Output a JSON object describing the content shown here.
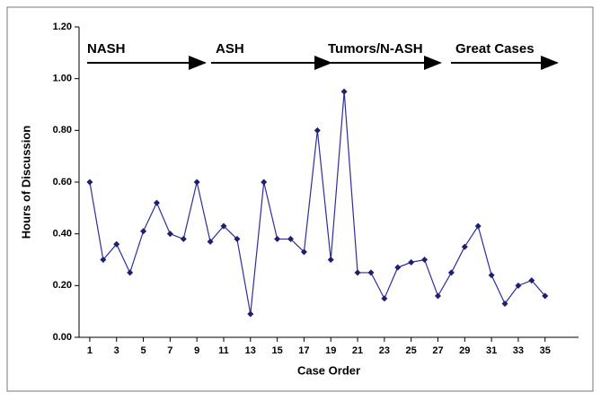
{
  "chart_data": {
    "type": "line",
    "x_label": "Case Order",
    "y_label": "Hours of Discussion",
    "x": [
      1,
      2,
      3,
      4,
      5,
      6,
      7,
      8,
      9,
      10,
      11,
      12,
      13,
      14,
      15,
      16,
      17,
      18,
      19,
      20,
      21,
      22,
      23,
      24,
      25,
      26,
      27,
      28,
      29,
      30,
      31,
      32,
      33,
      34,
      35
    ],
    "series": [
      {
        "name": "Hours",
        "color": "#2e2e9a",
        "marker_color": "#1f1f6e",
        "values": [
          0.6,
          0.3,
          0.36,
          0.25,
          0.41,
          0.52,
          0.4,
          0.38,
          0.6,
          0.37,
          0.43,
          0.38,
          0.09,
          0.6,
          0.38,
          0.38,
          0.33,
          0.8,
          0.3,
          0.95,
          0.25,
          0.25,
          0.15,
          0.27,
          0.29,
          0.3,
          0.16,
          0.25,
          0.35,
          0.43,
          0.24,
          0.13,
          0.2,
          0.22,
          0.16
        ]
      }
    ],
    "xlim": [
      0.2,
      37.5
    ],
    "xticks": [
      1,
      3,
      5,
      7,
      9,
      11,
      13,
      15,
      17,
      19,
      21,
      23,
      25,
      27,
      29,
      31,
      33,
      35
    ],
    "ylim": [
      0,
      1.2
    ],
    "yticks": [
      {
        "value": 0,
        "label": "0.00"
      },
      {
        "value": 0.2,
        "label": "0.20"
      },
      {
        "value": 0.4,
        "label": "0.40"
      },
      {
        "value": 0.6,
        "label": "0.60"
      },
      {
        "value": 0.8,
        "label": "0.80"
      },
      {
        "value": 1.0,
        "label": "1.00"
      },
      {
        "value": 1.2,
        "label": "1.20"
      }
    ],
    "annotations": [
      {
        "text": "NASH"
      },
      {
        "text": "ASH"
      },
      {
        "text": "Tumors/N-ASH"
      },
      {
        "text": "Great Cases"
      }
    ]
  }
}
